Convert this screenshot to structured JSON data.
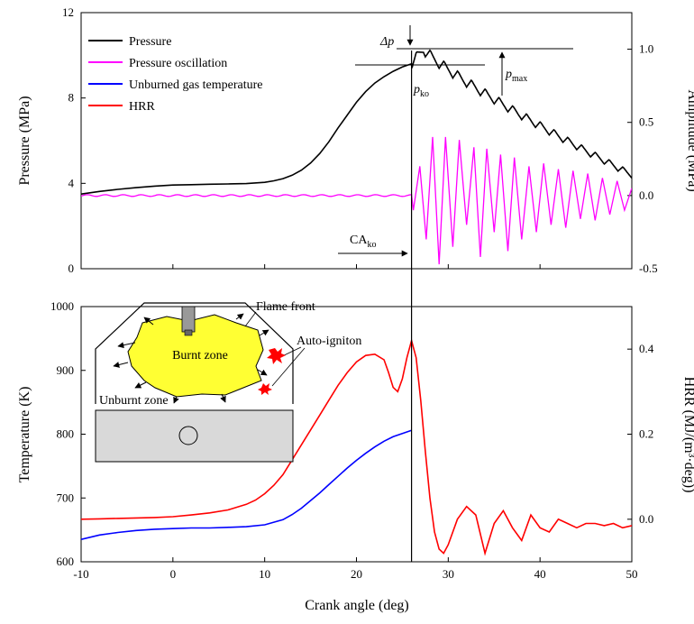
{
  "chart_data": [
    {
      "type": "line",
      "xlabel": "",
      "ylabel": "Pressure (MPa)",
      "ylabel_right": "Amplitude (MPa)",
      "xlim": [
        -10,
        50
      ],
      "ylim": [
        0,
        12
      ],
      "ylim_right": [
        -0.5,
        1.25
      ],
      "yticks": [
        "0",
        "4",
        "8",
        "12"
      ],
      "yticks_right": [
        "-0.5",
        "0.0",
        "0.5",
        "1.0"
      ],
      "legend_position": "top-left",
      "series": [
        {
          "name": "Pressure",
          "color": "#000000",
          "axis": "left",
          "x": [
            -10,
            -8,
            -6,
            -4,
            -2,
            0,
            2,
            4,
            6,
            8,
            10,
            11,
            12,
            13,
            14,
            15,
            16,
            17,
            18,
            19,
            20,
            21,
            22,
            23,
            24,
            25,
            26
          ],
          "y": [
            3.5,
            3.62,
            3.72,
            3.8,
            3.87,
            3.92,
            3.94,
            3.96,
            3.97,
            3.99,
            4.05,
            4.12,
            4.22,
            4.38,
            4.62,
            4.95,
            5.4,
            5.95,
            6.6,
            7.2,
            7.8,
            8.3,
            8.7,
            9.0,
            9.25,
            9.45,
            9.6
          ],
          "ko_x": 26,
          "peak": 10.3,
          "decay_end": 4.4,
          "oscillation_period_deg": 1.5
        },
        {
          "name": "Pressure oscillation",
          "color": "#ff00ff",
          "axis": "right",
          "baseline": 0,
          "x": [
            26.2,
            26.9,
            27.6,
            28.3,
            29.0,
            29.7,
            30.5,
            31.2,
            32.0,
            32.8,
            33.5,
            34.2,
            35.0,
            35.7,
            36.5,
            37.2,
            38.0,
            38.8,
            39.6,
            40.4,
            41.2,
            42.0,
            42.8,
            43.6,
            44.4,
            45.2,
            46.0,
            46.8,
            47.6,
            48.4,
            49.2,
            50.0
          ],
          "y": [
            -0.1,
            0.2,
            -0.3,
            0.4,
            -0.47,
            0.4,
            -0.35,
            0.38,
            -0.2,
            0.33,
            -0.42,
            0.32,
            -0.25,
            0.28,
            -0.38,
            0.26,
            -0.3,
            0.2,
            -0.25,
            0.22,
            -0.2,
            0.18,
            -0.22,
            0.17,
            -0.16,
            0.15,
            -0.17,
            0.12,
            -0.13,
            0.1,
            -0.1,
            0.05
          ]
        }
      ],
      "annotations": {
        "delta_p": "Δp",
        "p_ko": "p",
        "p_ko_sub": "ko",
        "p_max": "p",
        "p_max_sub": "max",
        "ca_ko": "CA",
        "ca_ko_sub": "ko"
      }
    },
    {
      "type": "line",
      "xlabel": "Crank angle (deg)",
      "ylabel": "Temperature (K)",
      "ylabel_right": "HRR (MJ/(m³·deg))",
      "xlim": [
        -10,
        50
      ],
      "ylim": [
        600,
        1000
      ],
      "ylim_right": [
        -0.1,
        0.5
      ],
      "xticks": [
        "-10",
        "0",
        "10",
        "20",
        "30",
        "40",
        "50"
      ],
      "yticks": [
        "600",
        "700",
        "800",
        "900",
        "1000"
      ],
      "yticks_right": [
        "0.0",
        "0.2",
        "0.4"
      ],
      "series": [
        {
          "name": "Unburned gas temperature",
          "color": "#0000ff",
          "axis": "left",
          "x": [
            -10,
            -8,
            -6,
            -4,
            -2,
            0,
            2,
            4,
            6,
            8,
            10,
            12,
            13,
            14,
            15,
            16,
            17,
            18,
            19,
            20,
            21,
            22,
            23,
            24,
            25,
            26
          ],
          "y": [
            635,
            642,
            646,
            649,
            651,
            652,
            653,
            653,
            654,
            655,
            658,
            666,
            674,
            684,
            696,
            708,
            721,
            734,
            747,
            759,
            770,
            780,
            789,
            796,
            801,
            806
          ]
        },
        {
          "name": "HRR",
          "color": "#ff0000",
          "axis": "right",
          "x": [
            -10,
            -8,
            -6,
            -4,
            -2,
            0,
            2,
            4,
            6,
            8,
            9,
            10,
            11,
            12,
            13,
            14,
            15,
            16,
            17,
            18,
            19,
            20,
            21,
            22,
            23,
            23.5,
            24,
            24.5,
            25,
            25.5,
            26,
            26.5,
            27,
            27.5,
            28,
            28.5,
            29,
            29.5,
            30,
            31,
            32,
            33,
            34,
            35,
            36,
            37,
            38,
            39,
            40,
            41,
            42,
            43,
            44,
            45,
            46,
            47,
            48,
            49,
            50
          ],
          "y": [
            0.0,
            0.001,
            0.002,
            0.003,
            0.004,
            0.006,
            0.01,
            0.015,
            0.022,
            0.035,
            0.045,
            0.06,
            0.08,
            0.105,
            0.14,
            0.175,
            0.21,
            0.245,
            0.28,
            0.315,
            0.345,
            0.37,
            0.385,
            0.388,
            0.375,
            0.345,
            0.31,
            0.3,
            0.33,
            0.38,
            0.42,
            0.38,
            0.28,
            0.16,
            0.05,
            -0.03,
            -0.07,
            -0.08,
            -0.06,
            0.0,
            0.03,
            0.01,
            -0.08,
            -0.01,
            0.02,
            -0.02,
            -0.05,
            0.01,
            -0.02,
            -0.03,
            0.0,
            -0.01,
            -0.02,
            -0.01,
            -0.01,
            -0.015,
            -0.01,
            -0.02,
            -0.015
          ]
        }
      ],
      "inset": {
        "flame_front": "Flame front",
        "burnt_zone": "Burnt zone",
        "unburnt_zone": "Unburnt zone",
        "auto_ignition": "Auto-igniton",
        "burnt_color": "#ffff33",
        "ignition_color": "#ff0000"
      }
    }
  ]
}
